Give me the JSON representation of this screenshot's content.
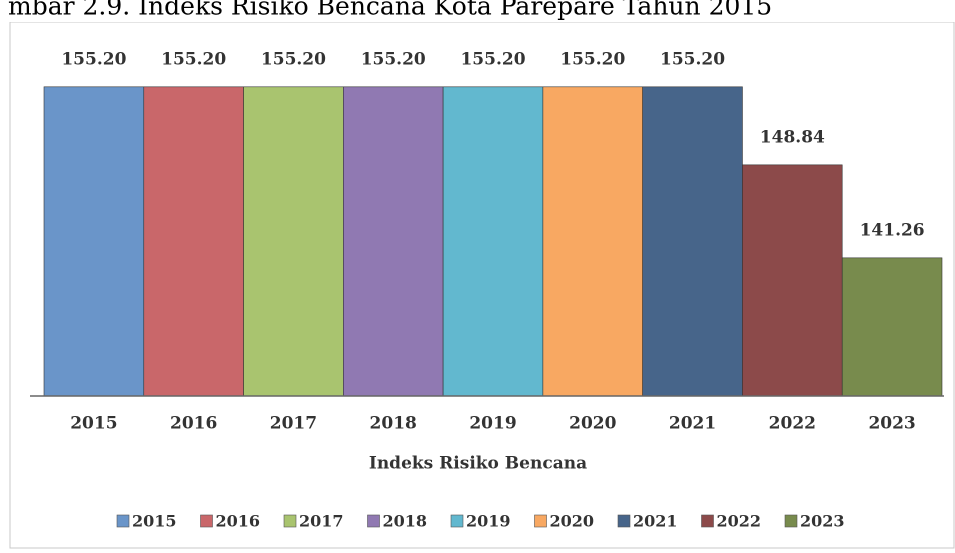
{
  "chart_data": {
    "type": "bar",
    "title": "mbar 2.9. Indeks Risiko Bencana Kota Parepare Tahun 2015",
    "x_label": "Indeks Risiko Bencana",
    "categories": [
      "2015",
      "2016",
      "2017",
      "2018",
      "2019",
      "2020",
      "2021",
      "2022",
      "2023"
    ],
    "values": [
      155.2,
      155.2,
      155.2,
      155.2,
      155.2,
      155.2,
      155.2,
      148.84,
      141.26
    ],
    "value_labels": [
      "155.20",
      "155.20",
      "155.20",
      "155.20",
      "155.20",
      "155.20",
      "155.20",
      "148.84",
      "141.26"
    ],
    "colors": [
      "#6a95c9",
      "#c9676a",
      "#a9c46f",
      "#9079b2",
      "#62b8cf",
      "#f8a862",
      "#47658a",
      "#8c4a4a",
      "#788b4d"
    ],
    "ylim": [
      130,
      157.5
    ],
    "legend": "bottom"
  }
}
